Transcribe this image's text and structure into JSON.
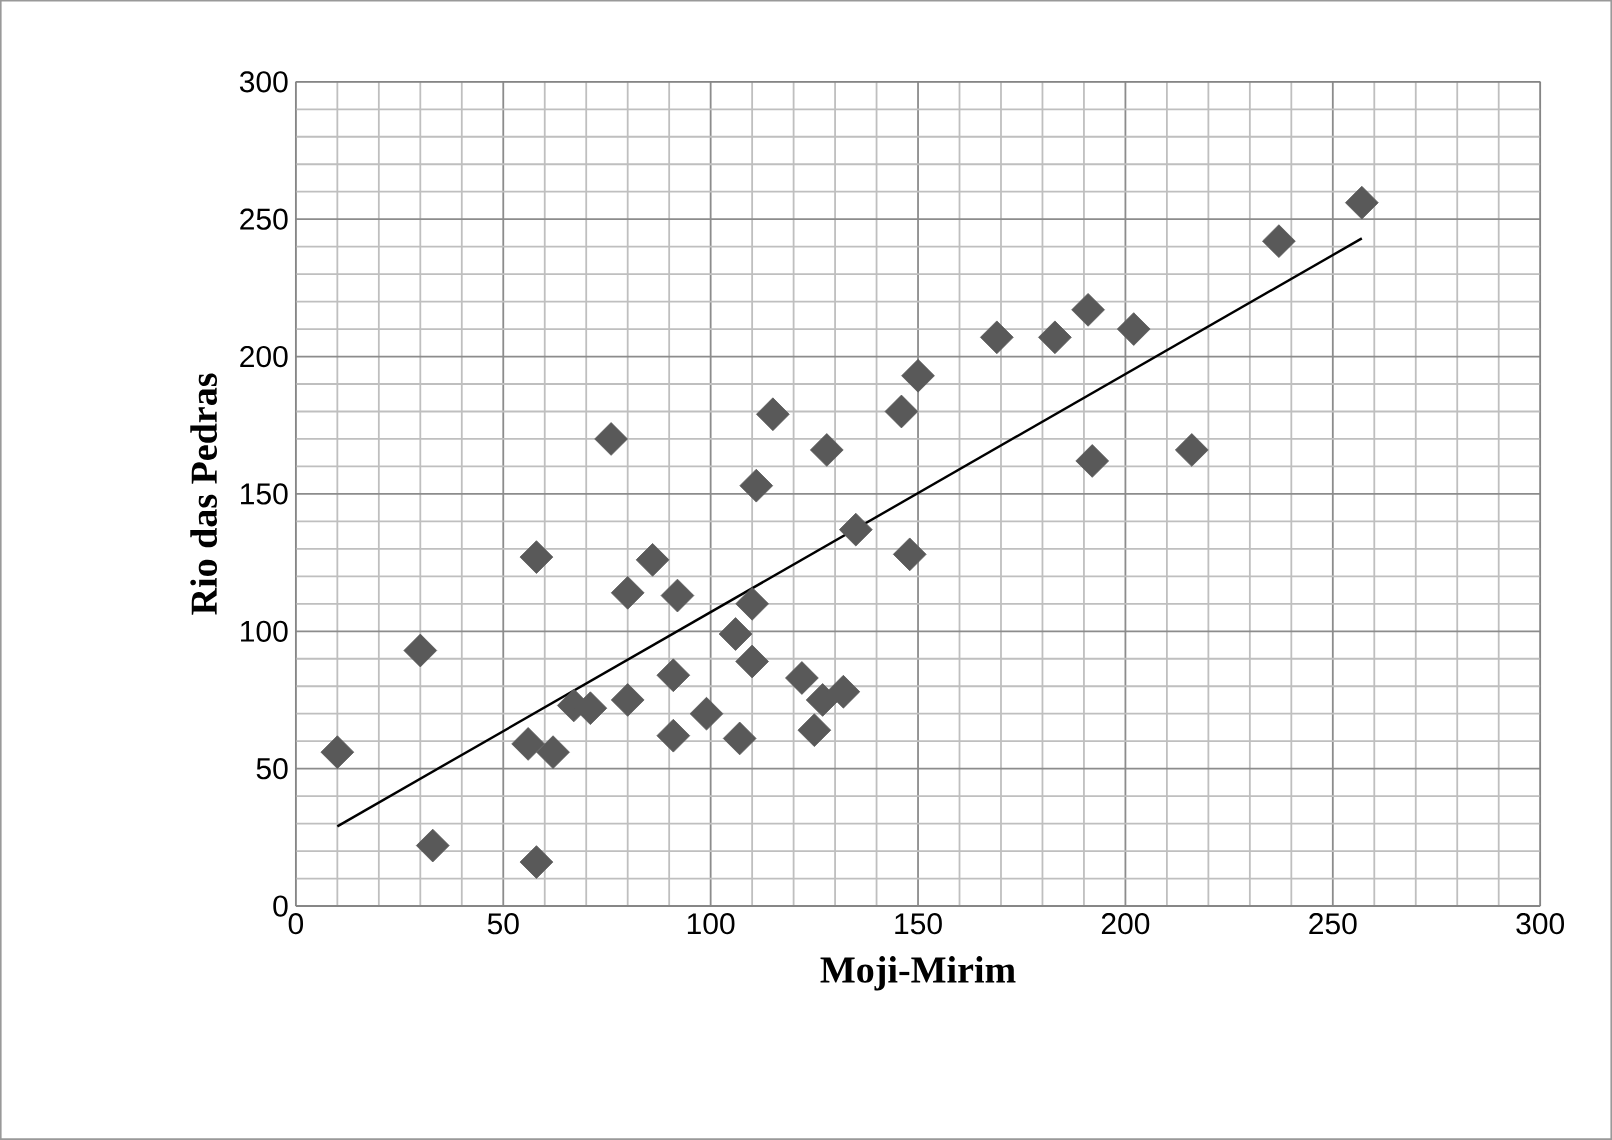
{
  "chart_data": {
    "type": "scatter",
    "xlabel": "Moji-Mirim",
    "ylabel": "Rio das Pedras",
    "xlim": [
      0,
      300
    ],
    "ylim": [
      0,
      300
    ],
    "xticks": [
      0,
      50,
      100,
      150,
      200,
      250,
      300
    ],
    "yticks": [
      0,
      50,
      100,
      150,
      200,
      250,
      300
    ],
    "grid": true,
    "marker": "diamond",
    "series": [
      {
        "color": "#595959",
        "x": [
          10,
          30,
          33,
          56,
          58,
          58,
          62,
          67,
          71,
          76,
          80,
          80,
          86,
          91,
          91,
          92,
          99,
          106,
          107,
          110,
          110,
          111,
          115,
          122,
          125,
          127,
          128,
          132,
          135,
          146,
          148,
          150,
          169,
          183,
          191,
          192,
          202,
          216,
          237,
          257
        ],
        "values": [
          56,
          93,
          22,
          59,
          127,
          16,
          56,
          73,
          72,
          170,
          114,
          75,
          126,
          84,
          62,
          113,
          70,
          99,
          61,
          89,
          110,
          153,
          179,
          83,
          64,
          75,
          166,
          78,
          137,
          180,
          128,
          193,
          207,
          207,
          217,
          162,
          210,
          166,
          242,
          256
        ]
      },
      {
        "type": "line",
        "color": "#000000",
        "marker": "none",
        "x": [
          10,
          257
        ],
        "values": [
          29,
          243
        ]
      }
    ]
  }
}
